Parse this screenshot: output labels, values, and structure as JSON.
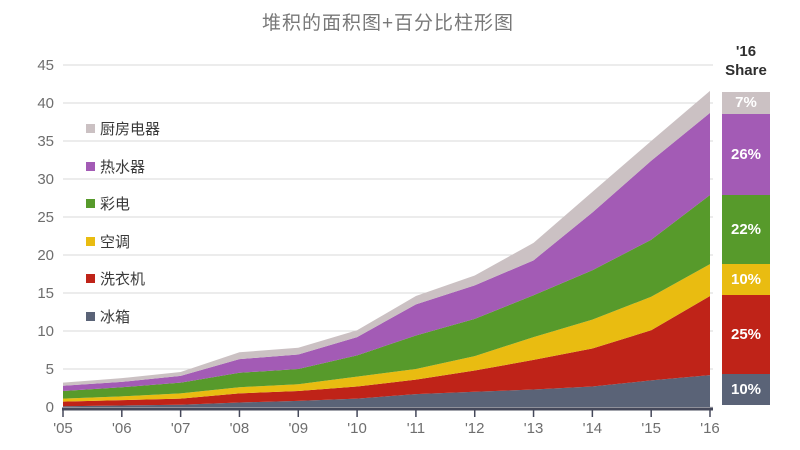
{
  "title": "堆积的面积图+百分比柱形图",
  "share_column": {
    "header_line1": "'16",
    "header_line2": "Share",
    "segments_top_to_bottom": [
      {
        "label": "7%",
        "pct": 7,
        "series": "厨房电器",
        "color": "#cbc1c3"
      },
      {
        "label": "26%",
        "pct": 26,
        "series": "热水器",
        "color": "#a35bb5"
      },
      {
        "label": "22%",
        "pct": 22,
        "series": "彩电",
        "color": "#579a2b"
      },
      {
        "label": "10%",
        "pct": 10,
        "series": "空调",
        "color": "#e9bc11"
      },
      {
        "label": "25%",
        "pct": 25,
        "series": "洗衣机",
        "color": "#bf2318"
      },
      {
        "label": "10%",
        "pct": 10,
        "series": "冰箱",
        "color": "#5a6377"
      }
    ]
  },
  "legend_top_to_bottom": [
    "厨房电器",
    "热水器",
    "彩电",
    "空调",
    "洗衣机",
    "冰箱"
  ],
  "colors": {
    "gridline": "#d9d9d9",
    "axis_line": "#45485a",
    "tick_label": "#6e6e6e",
    "title_text": "#787878",
    "legend_text": "#3a3a3a"
  },
  "chart_data": {
    "type": "area",
    "stacked": true,
    "title": "堆积的面积图+百分比柱形图",
    "xlabel": "",
    "ylabel": "",
    "categories": [
      "'05",
      "'06",
      "'07",
      "'08",
      "'09",
      "'10",
      "'11",
      "'12",
      "'13",
      "'14",
      "'15",
      "'16"
    ],
    "yticks": [
      0,
      5,
      10,
      15,
      20,
      25,
      30,
      35,
      40,
      45
    ],
    "ylim": [
      0,
      45
    ],
    "grid": true,
    "legend_position": "top-left-inside",
    "series_bottom_to_top": [
      {
        "name": "冰箱",
        "color": "#5a6377",
        "share_2016": "10%",
        "values": [
          0.1,
          0.2,
          0.3,
          0.6,
          0.8,
          1.1,
          1.7,
          2.0,
          2.3,
          2.7,
          3.5,
          4.2
        ]
      },
      {
        "name": "洗衣机",
        "color": "#bf2318",
        "share_2016": "25%",
        "values": [
          0.6,
          0.7,
          0.8,
          1.2,
          1.3,
          1.6,
          1.9,
          2.8,
          3.9,
          5.0,
          6.6,
          10.4
        ]
      },
      {
        "name": "空调",
        "color": "#e9bc11",
        "share_2016": "10%",
        "values": [
          0.4,
          0.5,
          0.7,
          0.8,
          0.9,
          1.3,
          1.4,
          1.9,
          3.0,
          3.8,
          4.4,
          4.2
        ]
      },
      {
        "name": "彩电",
        "color": "#579a2b",
        "share_2016": "22%",
        "values": [
          1.0,
          1.2,
          1.4,
          1.9,
          2.0,
          2.8,
          4.4,
          4.9,
          5.5,
          6.5,
          7.5,
          9.1
        ]
      },
      {
        "name": "热水器",
        "color": "#a35bb5",
        "share_2016": "26%",
        "values": [
          0.7,
          0.7,
          0.9,
          1.8,
          1.9,
          2.4,
          4.1,
          4.4,
          4.6,
          7.6,
          10.4,
          10.8
        ]
      },
      {
        "name": "厨房电器",
        "color": "#cbc1c3",
        "share_2016": "7%",
        "values": [
          0.4,
          0.5,
          0.5,
          0.9,
          0.9,
          0.9,
          1.1,
          1.3,
          2.3,
          2.7,
          2.6,
          2.9
        ]
      }
    ]
  }
}
